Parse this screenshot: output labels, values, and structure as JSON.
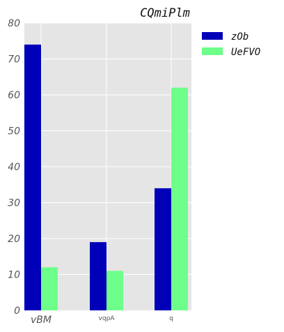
{
  "chart_data": {
    "type": "bar",
    "title": "CQmiPlm",
    "categories": [
      "vBM",
      "vqpA",
      "q"
    ],
    "series": [
      {
        "name": "zOb",
        "values": [
          74,
          19,
          34
        ],
        "color": "#0000b8"
      },
      {
        "name": "UeFVO",
        "values": [
          12,
          11,
          62
        ],
        "color": "#6eff8a"
      }
    ],
    "ylim": [
      0,
      80
    ],
    "yticks": [
      0,
      10,
      20,
      30,
      40,
      50,
      60,
      70,
      80
    ],
    "grid": true,
    "legend_position": "outside-right",
    "background": "#e5e5e5"
  }
}
